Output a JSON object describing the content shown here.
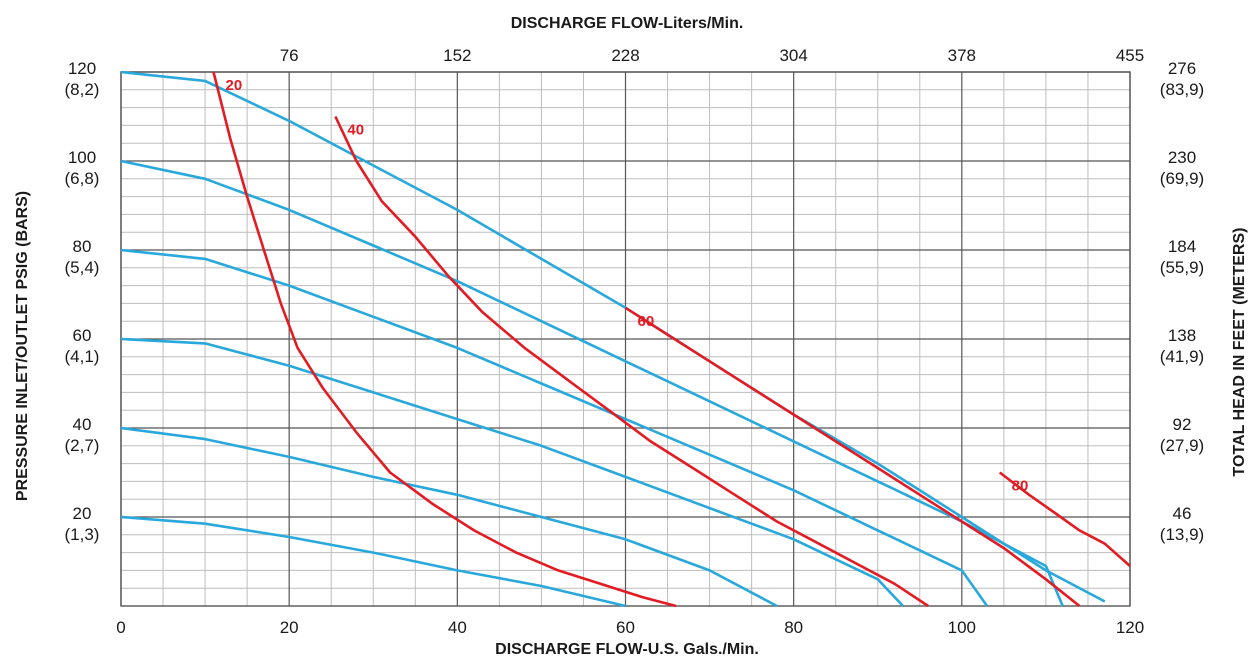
{
  "chart_data": {
    "type": "line",
    "title": "",
    "top_axis_title": "DISCHARGE FLOW-Liters/Min.",
    "bottom_axis_title": "DISCHARGE FLOW-U.S. Gals./Min.",
    "left_axis_title": "PRESSURE INLET/OUTLET PSIG (BARS)",
    "right_axis_title": "TOTAL HEAD IN FEET (METERS)",
    "xlim": [
      0,
      120
    ],
    "ylim": [
      0,
      120
    ],
    "grid": true,
    "x_ticks": [
      "0",
      "20",
      "40",
      "60",
      "80",
      "100",
      "120"
    ],
    "x_tick_values": [
      0,
      20,
      40,
      60,
      80,
      100,
      120
    ],
    "top_ticks": [
      "76",
      "152",
      "228",
      "304",
      "378",
      "455"
    ],
    "top_tick_values": [
      20,
      40,
      60,
      80,
      100,
      120
    ],
    "left_ticks": [
      {
        "psig": "120",
        "bars": "(8,2)",
        "value": 120
      },
      {
        "psig": "100",
        "bars": "(6,8)",
        "value": 100
      },
      {
        "psig": "80",
        "bars": "(5,4)",
        "value": 80
      },
      {
        "psig": "60",
        "bars": "(4,1)",
        "value": 60
      },
      {
        "psig": "40",
        "bars": "(2,7)",
        "value": 40
      },
      {
        "psig": "20",
        "bars": "(1,3)",
        "value": 20
      }
    ],
    "right_ticks": [
      {
        "feet": "276",
        "meters": "(83,9)",
        "value": 120
      },
      {
        "feet": "230",
        "meters": "(69,9)",
        "value": 100
      },
      {
        "feet": "184",
        "meters": "(55,9)",
        "value": 80
      },
      {
        "feet": "138",
        "meters": "(41,9)",
        "value": 60
      },
      {
        "feet": "92",
        "meters": "(27,9)",
        "value": 40
      },
      {
        "feet": "46",
        "meters": "(13,9)",
        "value": 20
      }
    ],
    "colors": {
      "pressure_curves": "#29a8dc",
      "air_curves": "#e31b23",
      "grid": "#555555",
      "minor_grid": "#bdbdbd",
      "text": "#1a1a1a"
    },
    "pressure_curves": [
      {
        "points": [
          [
            0,
            120
          ],
          [
            10,
            118
          ],
          [
            20,
            109
          ],
          [
            30,
            99
          ],
          [
            40,
            89
          ],
          [
            50,
            78
          ],
          [
            60,
            67
          ],
          [
            70,
            55
          ],
          [
            80,
            43
          ],
          [
            90,
            32
          ],
          [
            100,
            20
          ],
          [
            110,
            8
          ],
          [
            117,
            1
          ]
        ]
      },
      {
        "points": [
          [
            0,
            100
          ],
          [
            10,
            96
          ],
          [
            20,
            89
          ],
          [
            30,
            81
          ],
          [
            40,
            73
          ],
          [
            50,
            64
          ],
          [
            60,
            55
          ],
          [
            70,
            46
          ],
          [
            80,
            37
          ],
          [
            90,
            28
          ],
          [
            100,
            19
          ],
          [
            110,
            9
          ],
          [
            112,
            0
          ]
        ]
      },
      {
        "points": [
          [
            0,
            80
          ],
          [
            10,
            78
          ],
          [
            20,
            72
          ],
          [
            30,
            65
          ],
          [
            40,
            58
          ],
          [
            50,
            50
          ],
          [
            60,
            42
          ],
          [
            70,
            34
          ],
          [
            80,
            26
          ],
          [
            90,
            17
          ],
          [
            100,
            8
          ],
          [
            103,
            0
          ]
        ]
      },
      {
        "points": [
          [
            0,
            60
          ],
          [
            10,
            59
          ],
          [
            20,
            54
          ],
          [
            30,
            48
          ],
          [
            40,
            42
          ],
          [
            50,
            36
          ],
          [
            60,
            29
          ],
          [
            70,
            22
          ],
          [
            80,
            15
          ],
          [
            90,
            6
          ],
          [
            93,
            0
          ]
        ]
      },
      {
        "points": [
          [
            0,
            40
          ],
          [
            10,
            37.5
          ],
          [
            20,
            33.5
          ],
          [
            30,
            29
          ],
          [
            40,
            25
          ],
          [
            50,
            20
          ],
          [
            60,
            15
          ],
          [
            70,
            8
          ],
          [
            78,
            0
          ]
        ]
      },
      {
        "points": [
          [
            0,
            20
          ],
          [
            10,
            18.5
          ],
          [
            20,
            15.5
          ],
          [
            30,
            12
          ],
          [
            40,
            8
          ],
          [
            50,
            4.5
          ],
          [
            60,
            0
          ]
        ]
      }
    ],
    "air_curves": [
      {
        "label": "20",
        "points": [
          [
            11,
            120
          ],
          [
            13,
            105
          ],
          [
            15,
            92
          ],
          [
            17,
            80
          ],
          [
            19,
            68
          ],
          [
            21,
            58
          ],
          [
            24,
            49
          ],
          [
            28,
            39
          ],
          [
            32,
            30
          ],
          [
            37,
            23
          ],
          [
            42,
            17
          ],
          [
            47,
            12
          ],
          [
            52,
            8
          ],
          [
            57,
            5
          ],
          [
            62,
            2
          ],
          [
            66,
            0
          ]
        ]
      },
      {
        "label": "40",
        "points": [
          [
            25.5,
            110
          ],
          [
            28,
            100
          ],
          [
            31,
            91
          ],
          [
            35,
            83
          ],
          [
            39,
            74
          ],
          [
            43,
            66
          ],
          [
            48,
            58
          ],
          [
            53,
            51
          ],
          [
            58,
            44
          ],
          [
            63,
            37
          ],
          [
            68,
            31
          ],
          [
            73,
            25
          ],
          [
            78,
            19
          ],
          [
            83,
            14
          ],
          [
            88,
            9
          ],
          [
            92,
            5
          ],
          [
            96,
            0
          ]
        ]
      },
      {
        "label": "60",
        "points": [
          [
            60,
            67
          ],
          [
            65,
            61
          ],
          [
            70,
            55
          ],
          [
            75,
            49
          ],
          [
            80,
            43
          ],
          [
            85,
            37
          ],
          [
            90,
            31
          ],
          [
            95,
            25
          ],
          [
            100,
            19
          ],
          [
            105,
            13
          ],
          [
            110,
            6
          ],
          [
            114,
            0
          ]
        ]
      },
      {
        "label": "80",
        "points": [
          [
            104.5,
            30
          ],
          [
            108,
            25
          ],
          [
            111,
            21
          ],
          [
            114,
            17
          ],
          [
            117,
            14
          ],
          [
            120,
            9
          ]
        ]
      }
    ]
  }
}
